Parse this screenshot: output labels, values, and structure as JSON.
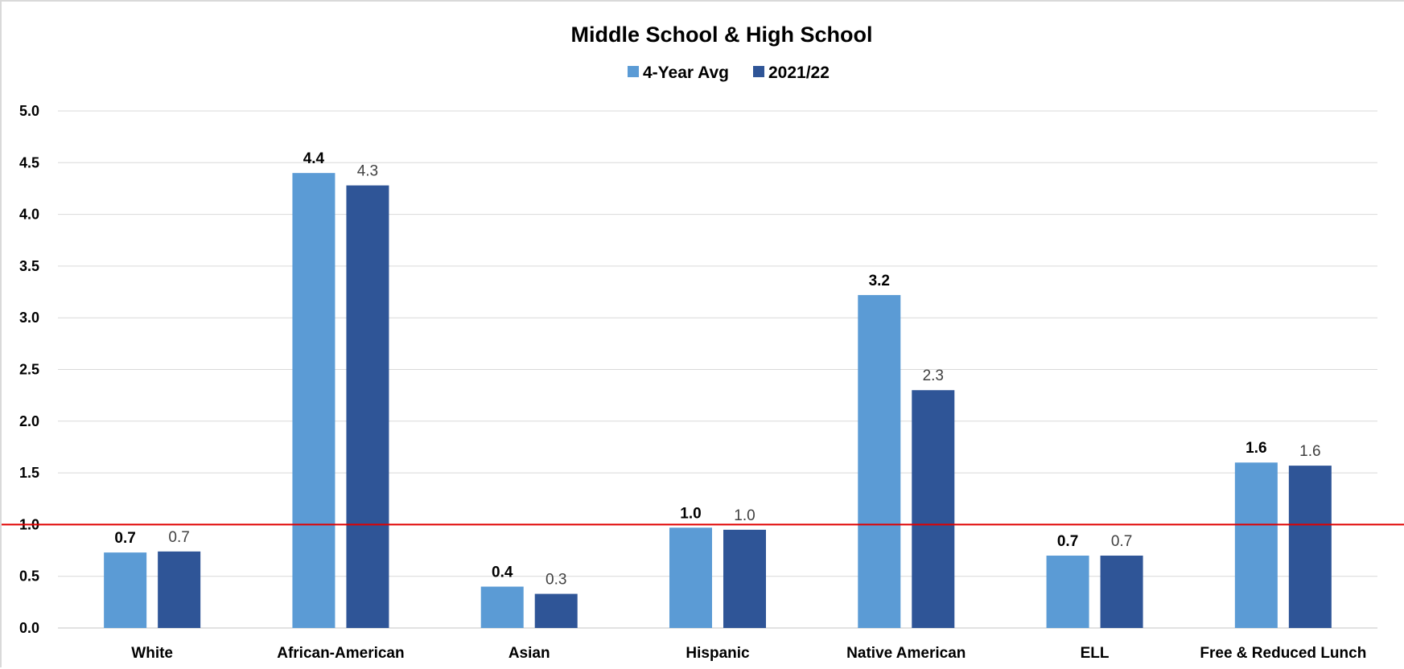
{
  "chart_data": {
    "type": "bar",
    "title": "Middle School & High School",
    "xlabel": "",
    "ylabel": "",
    "ylim": [
      0,
      5
    ],
    "yticks": [
      "0.0",
      "0.5",
      "1.0",
      "1.5",
      "2.0",
      "2.5",
      "3.0",
      "3.5",
      "4.0",
      "4.5",
      "5.0"
    ],
    "grid": true,
    "legend_position": "top-center",
    "categories": [
      "White",
      "African-American",
      "Asian",
      "Hispanic",
      "Native American",
      "ELL",
      "Free & Reduced Lunch"
    ],
    "series": [
      {
        "name": "4-Year Avg",
        "color": "#5b9bd5",
        "values": [
          0.73,
          4.4,
          0.4,
          0.97,
          3.22,
          0.7,
          1.6
        ],
        "labels": [
          "0.7",
          "4.4",
          "0.4",
          "1.0",
          "3.2",
          "0.7",
          "1.6"
        ]
      },
      {
        "name": "2021/22",
        "color": "#2f5597",
        "values": [
          0.74,
          4.28,
          0.33,
          0.95,
          2.3,
          0.7,
          1.57
        ],
        "labels": [
          "0.7",
          "4.3",
          "0.3",
          "1.0",
          "2.3",
          "0.7",
          "1.6"
        ]
      }
    ],
    "reference_line": {
      "value": 1.0,
      "color": "#e00000"
    },
    "gridline_color": "#d9d9d9"
  }
}
